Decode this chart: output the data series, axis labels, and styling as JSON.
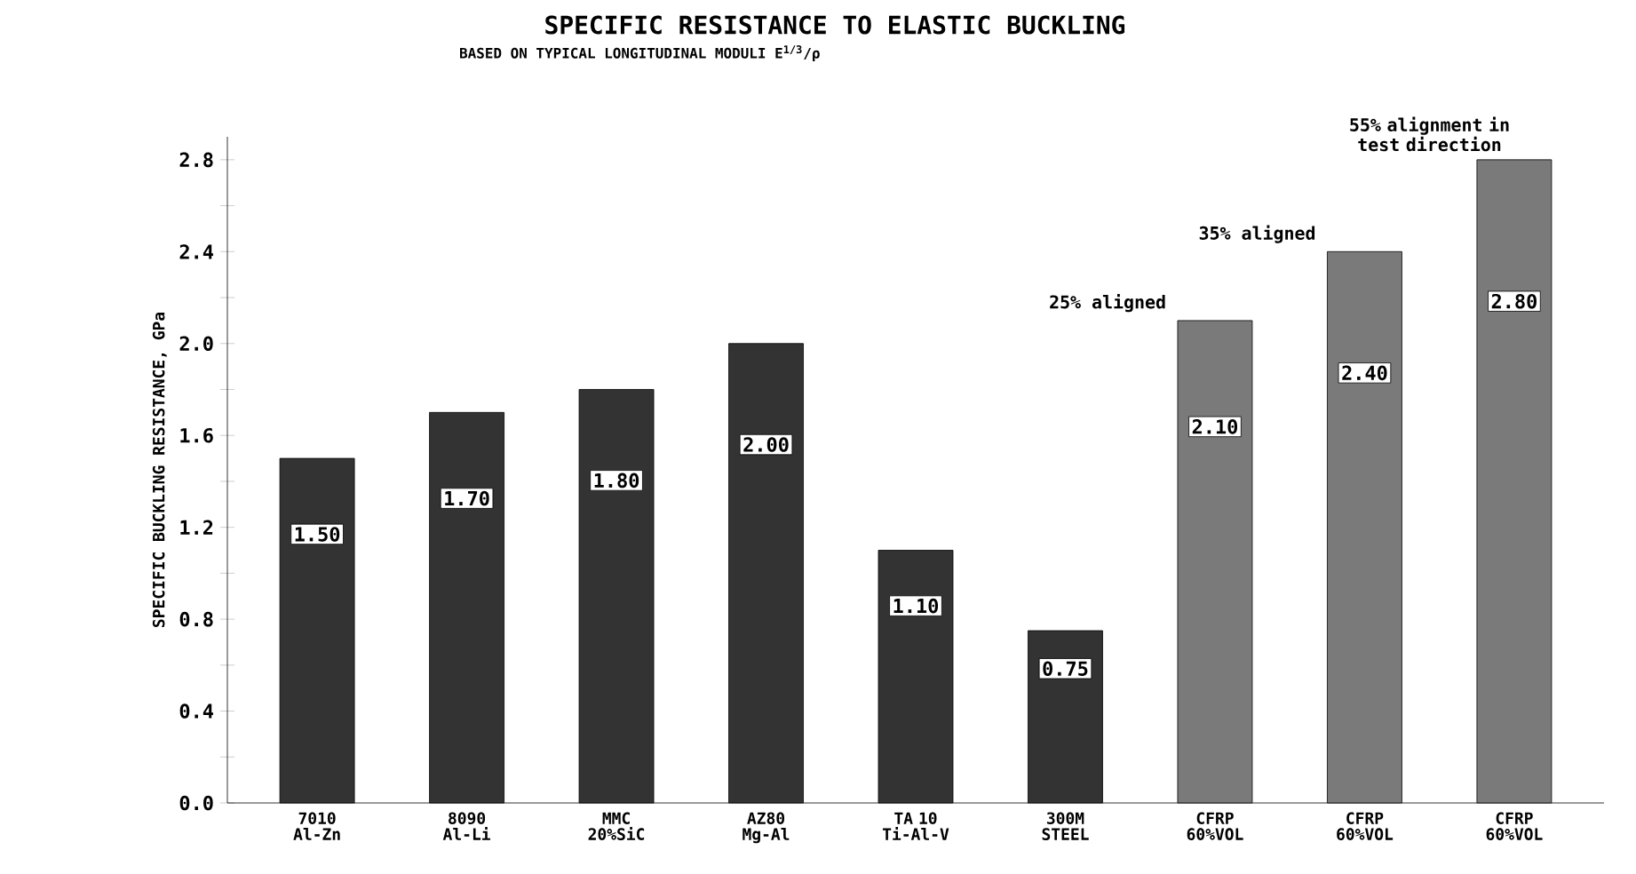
{
  "chart_data": {
    "type": "bar",
    "title": "SPECIFIC RESISTANCE TO ELASTIC BUCKLING",
    "subtitle": "BASED ON TYPICAL LONGITUDINAL MODULI E$^{1/3}$/ρ",
    "ylabel": "SPECIFIC BUCKLING RESISTANCE, GPa",
    "categories": [
      "7010 Al-Zn",
      "8090 Al-Li",
      "MMC 20%SiC",
      "AZ80 Mg-Al",
      "TA 10 Ti-Al-V",
      "300M STEEL",
      "CFRP 60%VOL",
      "CFRP 60%VOL",
      "CFRP 60%VOL"
    ],
    "values": [
      1.5,
      1.7,
      1.8,
      2.0,
      1.1,
      0.75,
      2.1,
      2.4,
      2.8
    ],
    "value_labels": [
      "1.50",
      "1.70",
      "1.80",
      "2.00",
      "1.10",
      "0.75",
      "2.10",
      "2.40",
      "2.80"
    ],
    "colors": [
      "#333333",
      "#333333",
      "#333333",
      "#333333",
      "#333333",
      "#333333",
      "#7a7a7a",
      "#7a7a7a",
      "#7a7a7a"
    ],
    "ylim": [
      0,
      2.9
    ],
    "yticks": [
      {
        "value": 0,
        "label": "0.0"
      },
      {
        "value": 0.2,
        "label": null
      },
      {
        "value": 0.4,
        "label": "0.4"
      },
      {
        "value": 0.6,
        "label": null
      },
      {
        "value": 0.8,
        "label": "0.8"
      },
      {
        "value": 1.0,
        "label": null
      },
      {
        "value": 1.2,
        "label": "1.2"
      },
      {
        "value": 1.4,
        "label": null
      },
      {
        "value": 1.6,
        "label": "1.6"
      },
      {
        "value": 1.8,
        "label": null
      },
      {
        "value": 2.0,
        "label": "2.0"
      },
      {
        "value": 2.2,
        "label": null
      },
      {
        "value": 2.4,
        "label": "2.4"
      },
      {
        "value": 2.6,
        "label": null
      },
      {
        "value": 2.8,
        "label": "2.8"
      }
    ],
    "annotations": [
      "25% aligned",
      "35% aligned",
      "55% alignment in test direction"
    ],
    "grid": false
  }
}
